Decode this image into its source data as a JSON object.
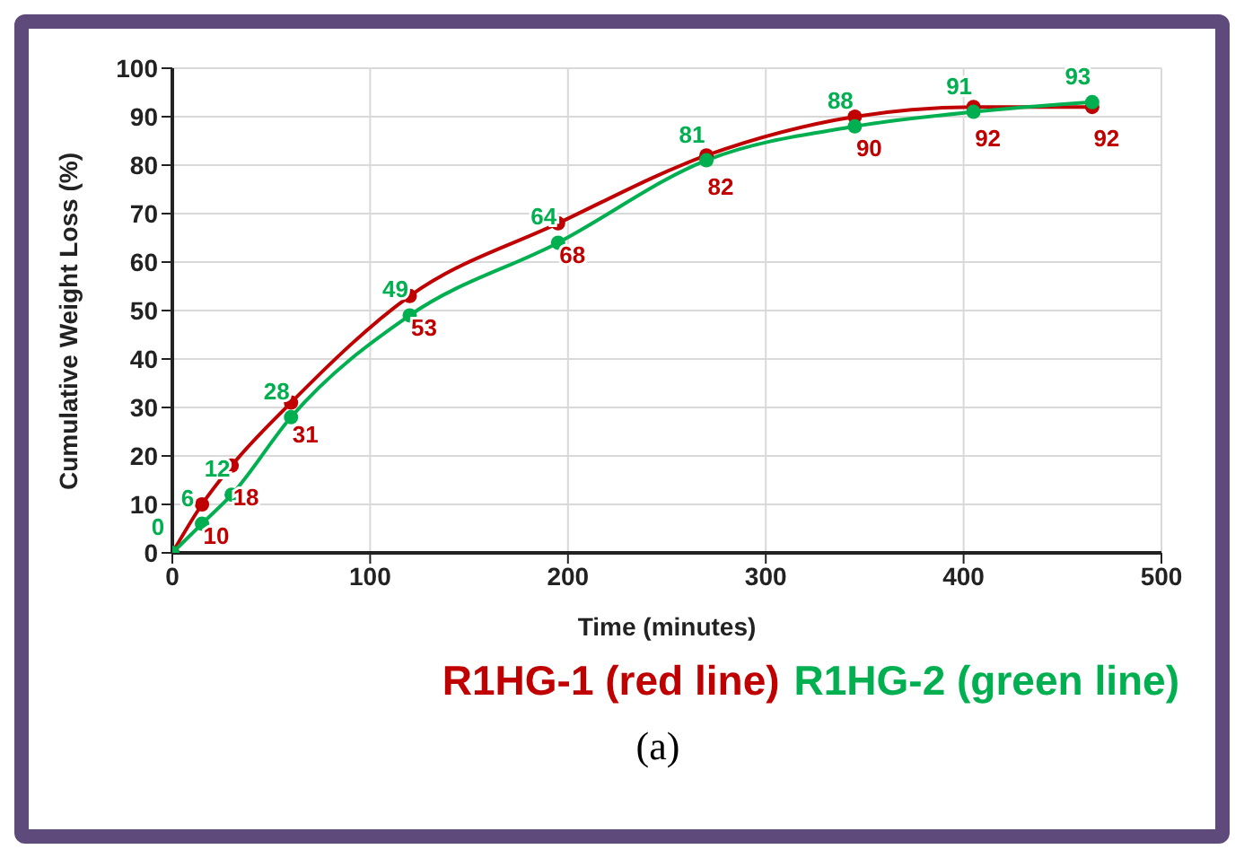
{
  "chart_data": {
    "type": "line",
    "xlabel": "Time (minutes)",
    "ylabel": "Cumulative Weight Loss (%)",
    "x": [
      0,
      15,
      30,
      60,
      120,
      195,
      270,
      345,
      405,
      465
    ],
    "series": [
      {
        "name": "R1HG-1 (red line)",
        "color": "#c00000",
        "values": [
          0,
          10,
          18,
          31,
          53,
          68,
          82,
          90,
          92,
          92
        ],
        "value_labels": [
          null,
          "10",
          "18",
          "31",
          "53",
          "68",
          "82",
          "90",
          "92",
          "92"
        ]
      },
      {
        "name": "R1HG-2 (green line)",
        "color": "#00b050",
        "values": [
          0,
          6,
          12,
          28,
          49,
          64,
          81,
          88,
          91,
          93
        ],
        "value_labels": [
          "0",
          "6",
          "12",
          "28",
          "49",
          "64",
          "81",
          "88",
          "91",
          "93"
        ]
      }
    ],
    "xlim": [
      0,
      500
    ],
    "xticks": [
      0,
      100,
      200,
      300,
      400,
      500
    ],
    "ylim": [
      0,
      100
    ],
    "yticks": [
      0,
      10,
      20,
      30,
      40,
      50,
      60,
      70,
      80,
      90,
      100
    ],
    "grid": true,
    "legend": "bottom",
    "marker": "circle",
    "line_style": "solid",
    "annotations": [
      "(a)"
    ]
  }
}
